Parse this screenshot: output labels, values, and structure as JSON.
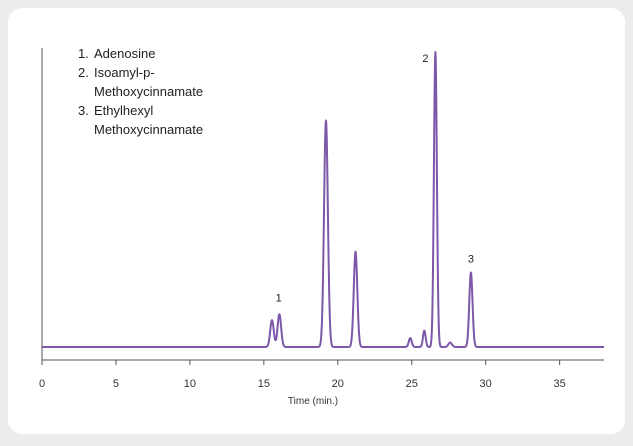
{
  "chart_data": {
    "type": "line",
    "xlabel": "Time (min.)",
    "ylabel": "",
    "xlim": [
      0,
      38
    ],
    "ylim": [
      0,
      100
    ],
    "x_ticks": [
      "0",
      "5",
      "10",
      "15",
      "20",
      "25",
      "30",
      "35"
    ],
    "grid": false,
    "line_color": "#7d58a8",
    "legend": {
      "placement": "top-left",
      "entries": [
        {
          "num": "1.",
          "text": "Adenosine"
        },
        {
          "num": "2.",
          "text": "Isoamyl-p-Methoxycinnamate"
        },
        {
          "num": "3.",
          "text": "Ethylhexyl Methoxycinnamate"
        }
      ]
    },
    "peak_labels": [
      {
        "label": "1",
        "x": 16.0,
        "y": 13
      },
      {
        "label": "2",
        "x": 26.6,
        "y": 100
      },
      {
        "label": "3",
        "x": 29.0,
        "y": 26
      }
    ],
    "baseline": 1,
    "peaks": [
      {
        "x": 15.55,
        "height": 9,
        "width": 0.12
      },
      {
        "x": 16.05,
        "height": 11,
        "width": 0.12
      },
      {
        "x": 19.2,
        "height": 76,
        "width": 0.13
      },
      {
        "x": 21.2,
        "height": 32,
        "width": 0.12
      },
      {
        "x": 24.9,
        "height": 3,
        "width": 0.1
      },
      {
        "x": 25.85,
        "height": 5.5,
        "width": 0.09
      },
      {
        "x": 26.6,
        "height": 99,
        "width": 0.1
      },
      {
        "x": 27.6,
        "height": 1.5,
        "width": 0.12
      },
      {
        "x": 29.0,
        "height": 25,
        "width": 0.11
      }
    ]
  }
}
